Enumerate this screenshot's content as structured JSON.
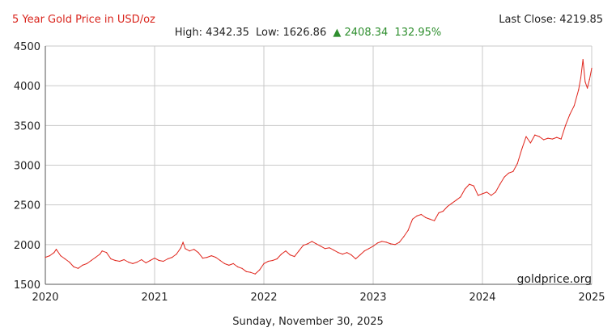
{
  "header": {
    "title": "5 Year Gold Price in USD/oz",
    "last_close_label": "Last Close:",
    "last_close_value": "4219.85",
    "high_label": "High:",
    "high_value": "4342.35",
    "low_label": "Low:",
    "low_value": "1626.86",
    "change_arrow": "▲",
    "change_value": "2408.34",
    "change_percent": "132.95%"
  },
  "footer": {
    "date": "Sunday, November 30, 2025"
  },
  "watermark": "goldprice.org",
  "colors": {
    "line": "#e0261d",
    "grid": "#c9c9c9",
    "axis": "#555555",
    "title": "#d9241c",
    "up": "#2f8f2f"
  },
  "chart_data": {
    "type": "line",
    "title": "5 Year Gold Price in USD/oz",
    "xlabel": "",
    "ylabel": "",
    "xlim": [
      2020,
      2025
    ],
    "ylim": [
      1500,
      4500
    ],
    "x_ticks": [
      "2020",
      "2021",
      "2022",
      "2023",
      "2024",
      "2025"
    ],
    "y_ticks": [
      "1500",
      "2000",
      "2500",
      "3000",
      "3500",
      "4000",
      "4500"
    ],
    "grid": true,
    "series": [
      {
        "x": [
          2020.0,
          2020.04,
          2020.08,
          2020.1,
          2020.14,
          2020.18,
          2020.22,
          2020.26,
          2020.3,
          2020.34,
          2020.38,
          2020.42,
          2020.46,
          2020.5,
          2020.52,
          2020.56,
          2020.6,
          2020.64,
          2020.68,
          2020.72,
          2020.76,
          2020.8,
          2020.84,
          2020.88,
          2020.92,
          2020.96,
          2021.0,
          2021.04,
          2021.08,
          2021.12,
          2021.16,
          2021.2,
          2021.24,
          2021.26,
          2021.28,
          2021.32,
          2021.36,
          2021.4,
          2021.44,
          2021.48,
          2021.52,
          2021.56,
          2021.6,
          2021.64,
          2021.68,
          2021.72,
          2021.76,
          2021.8,
          2021.84,
          2021.88,
          2021.92,
          2021.96,
          2022.0,
          2022.04,
          2022.08,
          2022.12,
          2022.16,
          2022.2,
          2022.24,
          2022.28,
          2022.32,
          2022.36,
          2022.4,
          2022.44,
          2022.48,
          2022.52,
          2022.56,
          2022.6,
          2022.64,
          2022.68,
          2022.72,
          2022.76,
          2022.8,
          2022.84,
          2022.88,
          2022.92,
          2022.96,
          2023.0,
          2023.04,
          2023.08,
          2023.12,
          2023.16,
          2023.2,
          2023.24,
          2023.28,
          2023.32,
          2023.36,
          2023.4,
          2023.44,
          2023.48,
          2023.52,
          2023.56,
          2023.6,
          2023.64,
          2023.68,
          2023.72,
          2023.76,
          2023.8,
          2023.84,
          2023.88,
          2023.92,
          2023.96,
          2024.0,
          2024.04,
          2024.08,
          2024.12,
          2024.16,
          2024.2,
          2024.24,
          2024.28,
          2024.32,
          2024.36,
          2024.4,
          2024.44,
          2024.48,
          2024.52,
          2024.56,
          2024.6,
          2024.64,
          2024.68,
          2024.72,
          2024.76,
          2024.8,
          2024.84,
          2024.88,
          2024.9,
          2024.92,
          2024.94,
          2024.96,
          2024.98,
          2025.0
        ],
        "values": [
          1840,
          1860,
          1900,
          1940,
          1860,
          1820,
          1780,
          1720,
          1700,
          1740,
          1760,
          1800,
          1840,
          1880,
          1920,
          1900,
          1820,
          1800,
          1790,
          1810,
          1780,
          1760,
          1780,
          1810,
          1770,
          1800,
          1830,
          1800,
          1790,
          1820,
          1840,
          1880,
          1960,
          2030,
          1950,
          1920,
          1940,
          1900,
          1830,
          1840,
          1860,
          1840,
          1800,
          1760,
          1740,
          1760,
          1720,
          1700,
          1660,
          1650,
          1630,
          1680,
          1760,
          1790,
          1800,
          1820,
          1880,
          1920,
          1870,
          1850,
          1920,
          1990,
          2010,
          2040,
          2010,
          1980,
          1950,
          1960,
          1930,
          1900,
          1880,
          1900,
          1870,
          1820,
          1870,
          1920,
          1950,
          1980,
          2020,
          2040,
          2030,
          2010,
          2000,
          2030,
          2100,
          2180,
          2320,
          2360,
          2380,
          2340,
          2320,
          2300,
          2400,
          2420,
          2480,
          2520,
          2560,
          2600,
          2700,
          2760,
          2740,
          2620,
          2640,
          2660,
          2620,
          2660,
          2760,
          2850,
          2900,
          2920,
          3020,
          3200,
          3360,
          3280,
          3380,
          3360,
          3320,
          3340,
          3330,
          3350,
          3330,
          3500,
          3640,
          3750,
          3950,
          4100,
          4330,
          4050,
          3970,
          4080,
          4219.85
        ]
      }
    ]
  }
}
